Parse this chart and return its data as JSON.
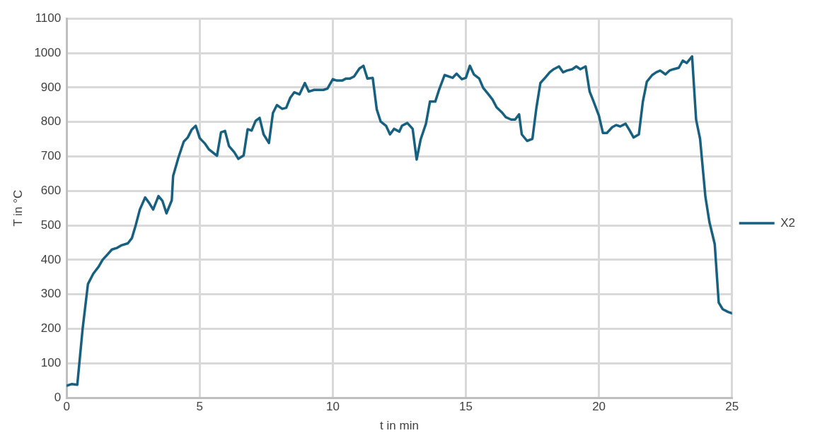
{
  "chart_data": {
    "type": "line",
    "xlabel": "t in min",
    "ylabel": "T in °C",
    "xlim": [
      0,
      25
    ],
    "xticks": [
      0,
      5,
      10,
      15,
      20,
      25
    ],
    "ylim": [
      0,
      1100
    ],
    "yticks": [
      0,
      100,
      200,
      300,
      400,
      500,
      600,
      700,
      800,
      900,
      1000,
      1100
    ],
    "grid": true,
    "legend": "right",
    "marker": "none",
    "line_style": "solid",
    "series": [
      {
        "name": "X2",
        "color": "#17607f",
        "x": [
          0,
          0.2,
          0.4,
          0.6,
          0.8,
          1.0,
          1.2,
          1.35,
          1.55,
          1.7,
          1.9,
          2.05,
          2.3,
          2.45,
          2.6,
          2.75,
          2.95,
          3.1,
          3.25,
          3.45,
          3.6,
          3.75,
          3.95,
          4.0,
          4.2,
          4.4,
          4.55,
          4.7,
          4.85,
          5.0,
          5.2,
          5.35,
          5.65,
          5.8,
          5.95,
          6.1,
          6.3,
          6.45,
          6.65,
          6.8,
          6.95,
          7.1,
          7.25,
          7.4,
          7.6,
          7.75,
          7.9,
          8.1,
          8.25,
          8.4,
          8.55,
          8.75,
          8.95,
          9.1,
          9.3,
          9.65,
          9.8,
          10.0,
          10.15,
          10.35,
          10.5,
          10.65,
          10.8,
          11.0,
          11.15,
          11.3,
          11.5,
          11.65,
          11.8,
          12.0,
          12.15,
          12.3,
          12.5,
          12.6,
          12.8,
          13.0,
          13.15,
          13.3,
          13.5,
          13.65,
          13.85,
          14.0,
          14.2,
          14.5,
          14.65,
          14.85,
          15.0,
          15.15,
          15.3,
          15.5,
          15.65,
          15.85,
          16.0,
          16.15,
          16.35,
          16.5,
          16.7,
          16.85,
          17.0,
          17.1,
          17.3,
          17.5,
          17.65,
          17.8,
          18.0,
          18.15,
          18.3,
          18.5,
          18.65,
          18.8,
          19.0,
          19.15,
          19.3,
          19.5,
          19.65,
          19.8,
          20.0,
          20.15,
          20.3,
          20.5,
          20.65,
          20.8,
          21.0,
          21.15,
          21.3,
          21.5,
          21.65,
          21.8,
          22.0,
          22.15,
          22.3,
          22.5,
          22.65,
          22.8,
          23.0,
          23.15,
          23.3,
          23.5,
          23.65,
          23.8,
          24.0,
          24.15,
          24.35,
          24.5,
          24.65,
          24.85,
          25.0
        ],
        "values": [
          35,
          40,
          38,
          200,
          330,
          360,
          380,
          400,
          417,
          430,
          435,
          442,
          448,
          463,
          502,
          546,
          581,
          565,
          546,
          585,
          571,
          535,
          573,
          643,
          697,
          743,
          755,
          778,
          789,
          753,
          737,
          720,
          702,
          770,
          774,
          730,
          712,
          693,
          703,
          779,
          775,
          803,
          812,
          764,
          739,
          826,
          849,
          838,
          841,
          870,
          886,
          880,
          913,
          888,
          893,
          893,
          897,
          924,
          920,
          920,
          926,
          926,
          932,
          955,
          963,
          926,
          928,
          837,
          801,
          789,
          764,
          780,
          772,
          789,
          797,
          780,
          691,
          749,
          795,
          859,
          859,
          895,
          936,
          928,
          940,
          924,
          928,
          963,
          938,
          926,
          899,
          880,
          865,
          843,
          828,
          814,
          807,
          807,
          822,
          764,
          745,
          751,
          841,
          913,
          930,
          944,
          953,
          961,
          944,
          949,
          953,
          961,
          953,
          961,
          888,
          859,
          818,
          768,
          768,
          785,
          791,
          787,
          795,
          776,
          755,
          764,
          859,
          917,
          936,
          944,
          949,
          938,
          949,
          953,
          957,
          978,
          971,
          990,
          807,
          751,
          583,
          510,
          446,
          276,
          257,
          249,
          245
        ]
      }
    ]
  }
}
